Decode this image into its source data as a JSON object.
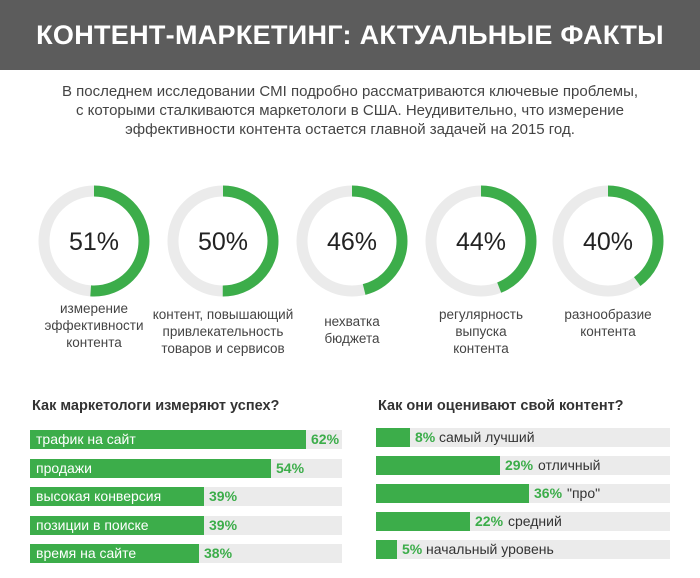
{
  "header": {
    "title": "КОНТЕНТ-МАРКЕТИНГ: АКТУАЛЬНЫЕ ФАКТЫ"
  },
  "intro": {
    "lines": [
      "В последнем исследовании CMI подробно рассматриваются ключевые проблемы,",
      "с которыми сталкиваются маркетологи в США. Неудивительно, что измерение",
      "эффективности контента остается главной задачей на 2015 год."
    ]
  },
  "colors": {
    "accent": "#3cad4a",
    "ring_track": "#ebebeb",
    "header_bg": "#5c5c5c",
    "bar_track": "#ebebeb"
  },
  "chart_data": [
    {
      "type": "pie",
      "subtype": "donut",
      "items": [
        {
          "value": 51,
          "value_label": "51%",
          "label_lines": [
            "измерение",
            "эффективности",
            "контента"
          ]
        },
        {
          "value": 50,
          "value_label": "50%",
          "label_lines": [
            "контент, повышающий",
            "привлекательность",
            "товаров и сервисов"
          ]
        },
        {
          "value": 46,
          "value_label": "46%",
          "label_lines": [
            "нехватка",
            "бюджета"
          ]
        },
        {
          "value": 44,
          "value_label": "44%",
          "label_lines": [
            "регулярность",
            "выпуска",
            "контента"
          ]
        },
        {
          "value": 40,
          "value_label": "40%",
          "label_lines": [
            "разнообразие",
            "контента"
          ]
        }
      ]
    },
    {
      "type": "bar",
      "orientation": "horizontal",
      "title": "Как маркетологи измеряют успех?",
      "categories": [
        "трафик на сайт",
        "продажи",
        "высокая конверсия",
        "позиции в поиске",
        "время на сайте"
      ],
      "values": [
        62,
        54,
        39,
        39,
        38
      ],
      "value_labels": [
        "62%",
        "54%",
        "39%",
        "39%",
        "38%"
      ],
      "xlim": [
        0,
        70
      ]
    },
    {
      "type": "bar",
      "orientation": "horizontal",
      "title": "Как они оценивают свой контент?",
      "categories": [
        "самый лучший",
        "отличный",
        "\"про\"",
        "средний",
        "начальный уровень"
      ],
      "values": [
        8,
        29,
        36,
        22,
        5
      ],
      "value_labels": [
        "8%",
        "29%",
        "36%",
        "22%",
        "5%"
      ],
      "xlim": [
        0,
        69
      ]
    }
  ]
}
